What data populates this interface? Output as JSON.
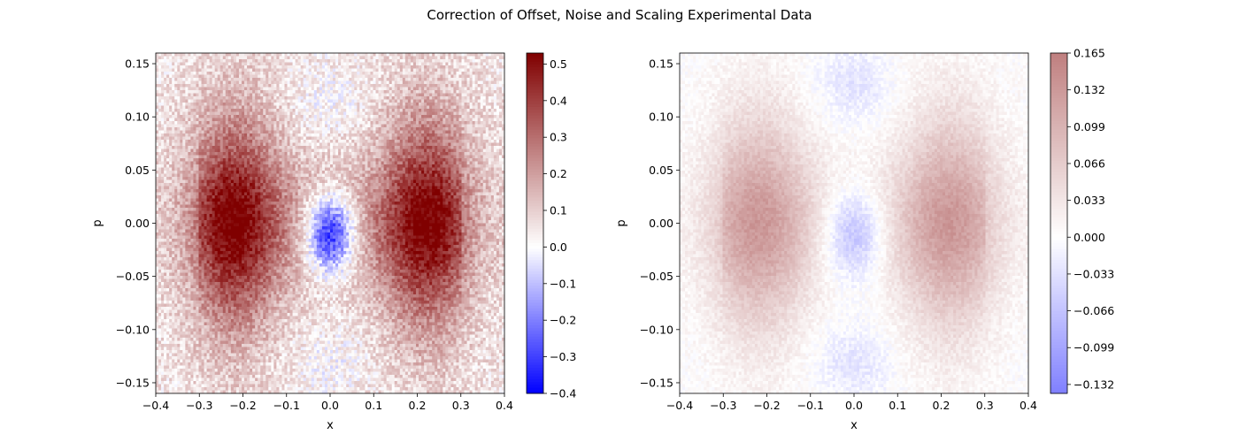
{
  "figure": {
    "title": "Correction of Offset, Noise and Scaling Experimental Data"
  },
  "chart_data": [
    {
      "type": "heatmap",
      "xlabel": "x",
      "ylabel": "p",
      "xlim": [
        -0.4,
        0.4
      ],
      "ylim": [
        -0.16,
        0.16
      ],
      "xticks": [
        -0.4,
        -0.3,
        -0.2,
        -0.1,
        0.0,
        0.1,
        0.2,
        0.3,
        0.4
      ],
      "xtick_labels": [
        "−0.4",
        "−0.3",
        "−0.2",
        "−0.1",
        "0.0",
        "0.1",
        "0.2",
        "0.3",
        "0.4"
      ],
      "yticks": [
        -0.15,
        -0.1,
        -0.05,
        0.0,
        0.05,
        0.1,
        0.15
      ],
      "ytick_labels": [
        "−0.15",
        "−0.10",
        "−0.05",
        "0.00",
        "0.05",
        "0.10",
        "0.15"
      ],
      "colormap": "bwr",
      "colorbar": {
        "vmin": -0.4,
        "vmax": 0.53,
        "ticks": [
          -0.4,
          -0.3,
          -0.2,
          -0.1,
          0.0,
          0.1,
          0.2,
          0.3,
          0.4,
          0.5
        ],
        "tick_labels": [
          "−0.4",
          "−0.3",
          "−0.2",
          "−0.1",
          "0.0",
          "0.1",
          "0.2",
          "0.3",
          "0.4",
          "0.5"
        ]
      },
      "features": {
        "side_peaks": {
          "x": [
            -0.22,
            0.22
          ],
          "p": 0.0,
          "value": 0.38,
          "width_x": 0.07,
          "width_p": 0.075
        },
        "central_dip": {
          "x": 0.0,
          "p": -0.01,
          "value": -0.3,
          "width_x": 0.04,
          "width_p": 0.025
        },
        "edge_lobes": {
          "x": [
            0.0,
            0.0
          ],
          "p": [
            0.11,
            -0.13
          ],
          "value": -0.05
        },
        "background": 0.05,
        "noise_amplitude": 0.08
      }
    },
    {
      "type": "heatmap",
      "xlabel": "x",
      "ylabel": "p",
      "xlim": [
        -0.4,
        0.4
      ],
      "ylim": [
        -0.16,
        0.16
      ],
      "xticks": [
        -0.4,
        -0.3,
        -0.2,
        -0.1,
        0.0,
        0.1,
        0.2,
        0.3,
        0.4
      ],
      "xtick_labels": [
        "−0.4",
        "−0.3",
        "−0.2",
        "−0.1",
        "0.0",
        "0.1",
        "0.2",
        "0.3",
        "0.4"
      ],
      "yticks": [
        -0.15,
        -0.1,
        -0.05,
        0.0,
        0.05,
        0.1,
        0.15
      ],
      "ytick_labels": [
        "−0.15",
        "−0.10",
        "−0.05",
        "0.00",
        "0.05",
        "0.10",
        "0.15"
      ],
      "colormap": "bwr (alpha 0.5)",
      "colorbar": {
        "vmin": -0.14,
        "vmax": 0.165,
        "ticks": [
          -0.132,
          -0.099,
          -0.066,
          -0.033,
          0.0,
          0.033,
          0.066,
          0.099,
          0.132,
          0.165
        ],
        "tick_labels": [
          "−0.132",
          "−0.099",
          "−0.066",
          "−0.033",
          "0.000",
          "0.033",
          "0.066",
          "0.099",
          "0.132",
          "0.165"
        ]
      },
      "features": {
        "side_peaks": {
          "x": [
            -0.22,
            0.22
          ],
          "p": 0.0,
          "value": 0.1,
          "width_x": 0.08,
          "width_p": 0.08
        },
        "central_dip": {
          "x": 0.0,
          "p": -0.01,
          "value": -0.06,
          "width_x": 0.05,
          "width_p": 0.03
        },
        "edge_lobes": {
          "x": [
            0.0,
            0.0
          ],
          "p": [
            0.13,
            -0.13
          ],
          "value": -0.03
        },
        "background": 0.0,
        "noise_amplitude": 0.015
      }
    }
  ]
}
